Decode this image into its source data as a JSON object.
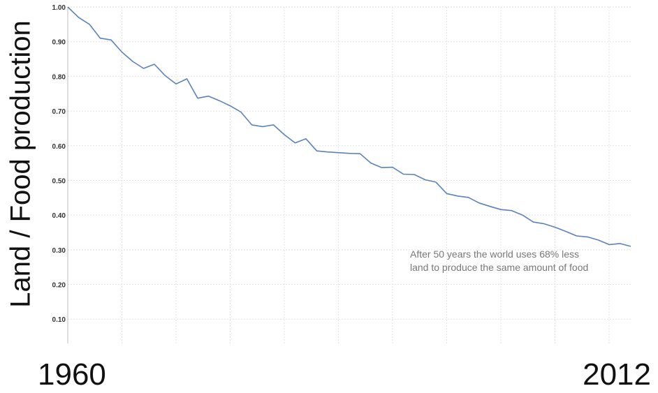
{
  "chart_data": {
    "type": "line",
    "ylabel": "Land / Food production",
    "x_start_label": "1960",
    "x_end_label": "2012",
    "annotation_line1": "After 50 years the world uses 68% less",
    "annotation_line2": "land to produce the same amount of food",
    "ylim": [
      0.03,
      1.0
    ],
    "xlim": [
      1960,
      2012
    ],
    "y_ticks": [
      "1.00",
      "0.90",
      "0.80",
      "0.70",
      "0.60",
      "0.50",
      "0.40",
      "0.30",
      "0.20",
      "0.10"
    ],
    "grid": true,
    "line_color": "#5b82bd",
    "series": [
      {
        "x": [
          1960,
          1961,
          1962,
          1963,
          1964,
          1965,
          1966,
          1967,
          1968,
          1969,
          1970,
          1971,
          1972,
          1973,
          1974,
          1975,
          1976,
          1977,
          1978,
          1979,
          1980,
          1981,
          1982,
          1983,
          1984,
          1985,
          1986,
          1987,
          1988,
          1989,
          1990,
          1991,
          1992,
          1993,
          1994,
          1995,
          1996,
          1997,
          1998,
          1999,
          2000,
          2001,
          2002,
          2003,
          2004,
          2005,
          2006,
          2007,
          2008,
          2009,
          2010,
          2011,
          2012
        ],
        "values": [
          1.0,
          0.97,
          0.95,
          0.91,
          0.905,
          0.87,
          0.843,
          0.823,
          0.835,
          0.802,
          0.778,
          0.793,
          0.737,
          0.743,
          0.73,
          0.715,
          0.697,
          0.66,
          0.655,
          0.66,
          0.632,
          0.608,
          0.62,
          0.585,
          0.582,
          0.58,
          0.578,
          0.577,
          0.55,
          0.537,
          0.538,
          0.518,
          0.517,
          0.502,
          0.495,
          0.462,
          0.455,
          0.451,
          0.435,
          0.425,
          0.416,
          0.413,
          0.4,
          0.38,
          0.375,
          0.365,
          0.353,
          0.34,
          0.337,
          0.328,
          0.315,
          0.318,
          0.31
        ]
      }
    ]
  }
}
